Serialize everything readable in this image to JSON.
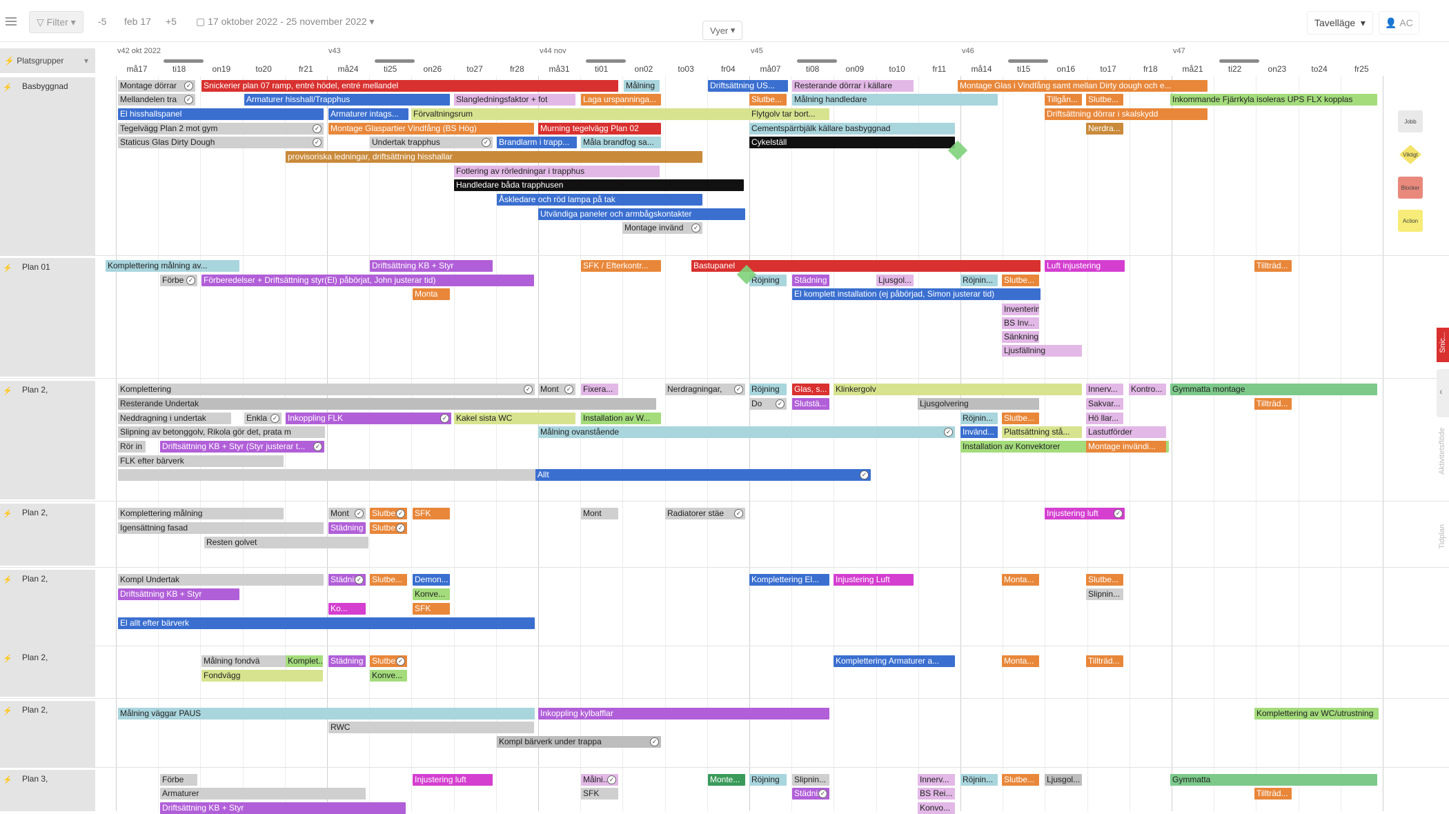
{
  "toolbar": {
    "filter_label": "Filter",
    "prev_label": "-5",
    "date_label": "feb 17",
    "next_label": "+5",
    "range_label": "17 oktober 2022 - 25 november 2022",
    "views_label": "Vyer",
    "mode_label": "Tavelläge",
    "user_label": "AC"
  },
  "header": {
    "group_label": "Platsgrupper",
    "weeks": [
      {
        "label": "v42  okt 2022"
      },
      {
        "label": "v43"
      },
      {
        "label": "v44  nov"
      },
      {
        "label": "v45"
      },
      {
        "label": "v46"
      },
      {
        "label": "v47"
      }
    ],
    "days": [
      "må17",
      "ti18",
      "on19",
      "to20",
      "fr21",
      "må24",
      "ti25",
      "on26",
      "to27",
      "fr28",
      "må31",
      "ti01",
      "on02",
      "to03",
      "fr04",
      "må07",
      "ti08",
      "on09",
      "to10",
      "fr11",
      "må14",
      "ti15",
      "on16",
      "to17",
      "fr18",
      "må21",
      "ti22",
      "on23",
      "to24",
      "fr25"
    ]
  },
  "groups": [
    {
      "label": "Basbyggnad"
    },
    {
      "label": "Plan 01"
    },
    {
      "label": "Plan 2,"
    },
    {
      "label": "Plan 2,"
    },
    {
      "label": "Plan 2,"
    },
    {
      "label": "Plan 2,"
    },
    {
      "label": "Plan 2,"
    },
    {
      "label": "Plan 3,"
    }
  ],
  "bars": [
    {
      "t": "Montage dörrar",
      "c": "#cfcfcf"
    },
    {
      "t": "Snickerier plan 07 ramp, entré hödel, entré mellandel",
      "c": "#d8312f"
    },
    {
      "t": "Målning",
      "c": "#a9d5dd"
    },
    {
      "t": "Driftsättning US...",
      "c": "#3a6fd0"
    },
    {
      "t": "Resterande dörrar i källare",
      "c": "#e2b8e6"
    },
    {
      "t": "Montage Glas i Vindfång samt mellan Dirty dough och e...",
      "c": "#e8873a"
    },
    {
      "t": "Mellandelen tra",
      "c": "#cfcfcf"
    },
    {
      "t": "Armaturer hisshall/Trapphus",
      "c": "#3a6fd0"
    },
    {
      "t": "Slangledningsfaktor + fot",
      "c": "#e2b8e6"
    },
    {
      "t": "Laga urspanninga...",
      "c": "#e8873a"
    },
    {
      "t": "Slutbe...",
      "c": "#e8873a"
    },
    {
      "t": "Målning handledare",
      "c": "#a9d5dd"
    },
    {
      "t": "Tillgån...",
      "c": "#e8873a"
    },
    {
      "t": "Slutbe...",
      "c": "#e8873a"
    },
    {
      "t": "Inkommande Fjärrkyla isoleras UPS FLX kopplas",
      "c": "#a4dc7c"
    },
    {
      "t": "El hisshallspanel",
      "c": "#3a6fd0"
    },
    {
      "t": "Armaturer intags...",
      "c": "#3a6fd0"
    },
    {
      "t": "Förvaltningsrum",
      "c": "#d7e38e"
    },
    {
      "t": "Flytgolv tar bort...",
      "c": "#d7e38e"
    },
    {
      "t": "Driftsättning dörrar i skalskydd",
      "c": "#e8873a"
    },
    {
      "t": "Tegelvägg Plan 2 mot gym",
      "c": "#cfcfcf"
    },
    {
      "t": "Montage Glaspartier Vindfång (BS Hög)",
      "c": "#e8873a"
    },
    {
      "t": "Murning tegelvägg Plan 02",
      "c": "#d8312f"
    },
    {
      "t": "Cementspärrbjälk källare basbyggnad",
      "c": "#a9d5dd"
    },
    {
      "t": "Nerdra...",
      "c": "#c98a3a"
    },
    {
      "t": "Staticus Glas Dirty Dough",
      "c": "#cfcfcf"
    },
    {
      "t": "Undertak trapphus",
      "c": "#cfcfcf"
    },
    {
      "t": "Brandlarm i trapp...",
      "c": "#3a6fd0"
    },
    {
      "t": "Måla brandfog sa...",
      "c": "#a9d5dd"
    },
    {
      "t": "Cykelställ",
      "c": "#111111"
    },
    {
      "t": "provisoriska ledningar, driftsättning hisshallar",
      "c": "#c98a3a"
    },
    {
      "t": "Fotlering av rörledningar i trapphus",
      "c": "#e2b8e6"
    },
    {
      "t": "Handledare båda trapphusen",
      "c": "#111111"
    },
    {
      "t": "Åskledare och röd lampa på tak",
      "c": "#3a6fd0"
    },
    {
      "t": "Utvändiga paneler och armbågskontakter",
      "c": "#3a6fd0"
    },
    {
      "t": "Montage invänd",
      "c": "#cfcfcf"
    },
    {
      "t": "Komplettering målning av...",
      "c": "#a9d5dd"
    },
    {
      "t": "Driftsättning KB + Styr",
      "c": "#b15fd8"
    },
    {
      "t": "SFK / Efterkontr...",
      "c": "#e8873a"
    },
    {
      "t": "Bastupanel",
      "c": "#d8312f"
    },
    {
      "t": "Luft injustering",
      "c": "#d43fd0"
    },
    {
      "t": "Tillträd...",
      "c": "#e8873a"
    },
    {
      "t": "Förbe",
      "c": "#cfcfcf"
    },
    {
      "t": "Förberedelser + Driftsättning styr(El) påbörjat, John justerar tid)",
      "c": "#b15fd8"
    },
    {
      "t": "Röjning",
      "c": "#a9d5dd"
    },
    {
      "t": "Städning",
      "c": "#b15fd8"
    },
    {
      "t": "Ljusgol...",
      "c": "#e2b8e6"
    },
    {
      "t": "Röjnin...",
      "c": "#a9d5dd"
    },
    {
      "t": "Slutbe...",
      "c": "#e8873a"
    },
    {
      "t": "Monta",
      "c": "#e8873a"
    },
    {
      "t": "El komplett installation (ej påbörjad, Simon justerar tid)",
      "c": "#3a6fd0"
    },
    {
      "t": "Inventering / Mont...",
      "c": "#e2b8e6"
    },
    {
      "t": "BS Inv...",
      "c": "#e2b8e6"
    },
    {
      "t": "Sänkning...",
      "c": "#e2b8e6"
    },
    {
      "t": "Ljusfällning",
      "c": "#e2b8e6"
    },
    {
      "t": "Komplettering",
      "c": "#cfcfcf"
    },
    {
      "t": "Mont",
      "c": "#cfcfcf"
    },
    {
      "t": "Fixera...",
      "c": "#e2b8e6"
    },
    {
      "t": "Nerdragningar,",
      "c": "#cfcfcf"
    },
    {
      "t": "Röjning",
      "c": "#a9d5dd"
    },
    {
      "t": "Glas, s...",
      "c": "#d8312f"
    },
    {
      "t": "Klinkergolv",
      "c": "#d7e38e"
    },
    {
      "t": "Innerv...",
      "c": "#e2b8e6"
    },
    {
      "t": "Kontro...",
      "c": "#e2b8e6"
    },
    {
      "t": "Gymmatta montage",
      "c": "#7cc98a"
    },
    {
      "t": "Resterande Undertak",
      "c": "#bdbdbd"
    },
    {
      "t": "Do",
      "c": "#cfcfcf"
    },
    {
      "t": "Slutstä...",
      "c": "#b15fd8"
    },
    {
      "t": "Ljusgolvering",
      "c": "#bdbdbd"
    },
    {
      "t": "Sakvar...",
      "c": "#e2b8e6"
    },
    {
      "t": "Tillträd...",
      "c": "#e8873a"
    },
    {
      "t": "Neddragning i undertak",
      "c": "#cfcfcf"
    },
    {
      "t": "Enkla",
      "c": "#cfcfcf"
    },
    {
      "t": "Inkoppling FLK",
      "c": "#b15fd8"
    },
    {
      "t": "Kakel sista WC",
      "c": "#d7e38e"
    },
    {
      "t": "Installation av W...",
      "c": "#a4dc7c"
    },
    {
      "t": "Röjnin...",
      "c": "#a9d5dd"
    },
    {
      "t": "Slutbe...",
      "c": "#e8873a"
    },
    {
      "t": "Hö llar...",
      "c": "#e2b8e6"
    },
    {
      "t": "Slipning av betonggolv, Rikola gör det, prata m",
      "c": "#cfcfcf"
    },
    {
      "t": "Målning ovanstående",
      "c": "#a9d5dd"
    },
    {
      "t": "Invänd...",
      "c": "#3a6fd0"
    },
    {
      "t": "Plattsättning stå...",
      "c": "#d7e38e"
    },
    {
      "t": "Lastutförder",
      "c": "#e2b8e6"
    },
    {
      "t": "Rör in",
      "c": "#cfcfcf"
    },
    {
      "t": "Driftsättning KB + Styr (Styr justerar t...",
      "c": "#b15fd8"
    },
    {
      "t": "Installation av Konvektorer",
      "c": "#a4dc7c"
    },
    {
      "t": "Montage invändi...",
      "c": "#e8873a"
    },
    {
      "t": "FLK efter bärverk",
      "c": "#cfcfcf"
    },
    {
      "t": "",
      "c": "#cfcfcf"
    },
    {
      "t": "Allt",
      "c": "#3a6fd0"
    },
    {
      "t": "Komplettering målning",
      "c": "#cfcfcf"
    },
    {
      "t": "Mont",
      "c": "#cfcfcf"
    },
    {
      "t": "Slutbe...",
      "c": "#e8873a"
    },
    {
      "t": "SFK",
      "c": "#e8873a"
    },
    {
      "t": "Mont",
      "c": "#cfcfcf"
    },
    {
      "t": "Radiatorer stäe",
      "c": "#cfcfcf"
    },
    {
      "t": "Injustering luft",
      "c": "#d43fd0"
    },
    {
      "t": "Igensättning fasad",
      "c": "#cfcfcf"
    },
    {
      "t": "Städning",
      "c": "#b15fd8"
    },
    {
      "t": "Slutbe...",
      "c": "#e8873a"
    },
    {
      "t": "Resten golvet",
      "c": "#cfcfcf"
    },
    {
      "t": "Kompl Undertak",
      "c": "#cfcfcf"
    },
    {
      "t": "Städning",
      "c": "#b15fd8"
    },
    {
      "t": "Slutbe...",
      "c": "#e8873a"
    },
    {
      "t": "Demon...",
      "c": "#3a6fd0"
    },
    {
      "t": "Komplettering El...",
      "c": "#3a6fd0"
    },
    {
      "t": "Injustering Luft",
      "c": "#d43fd0"
    },
    {
      "t": "Monta...",
      "c": "#e8873a"
    },
    {
      "t": "Slutbe...",
      "c": "#e8873a"
    },
    {
      "t": "Driftsättning KB + Styr",
      "c": "#b15fd8"
    },
    {
      "t": "Konve...",
      "c": "#a4dc7c"
    },
    {
      "t": "Slipnin...",
      "c": "#cfcfcf"
    },
    {
      "t": "Ko...",
      "c": "#d43fd0"
    },
    {
      "t": "SFK",
      "c": "#e8873a"
    },
    {
      "t": "El allt efter bärverk",
      "c": "#3a6fd0"
    },
    {
      "t": "Målning fondvä",
      "c": "#cfcfcf"
    },
    {
      "t": "Komplet...",
      "c": "#a4dc7c"
    },
    {
      "t": "Städning",
      "c": "#b15fd8"
    },
    {
      "t": "Slutbe...",
      "c": "#e8873a"
    },
    {
      "t": "Komplettering Armaturer a...",
      "c": "#3a6fd0"
    },
    {
      "t": "Monta...",
      "c": "#e8873a"
    },
    {
      "t": "Tillträd...",
      "c": "#e8873a"
    },
    {
      "t": "Fondvägg",
      "c": "#d7e38e"
    },
    {
      "t": "Konve...",
      "c": "#a4dc7c"
    },
    {
      "t": "Målning väggar PAUS",
      "c": "#a9d5dd"
    },
    {
      "t": "Inkoppling kylbafflar",
      "c": "#b15fd8"
    },
    {
      "t": "Komplettering av WC/utrustning",
      "c": "#a4dc7c"
    },
    {
      "t": "RWC",
      "c": "#cfcfcf"
    },
    {
      "t": "Kompl bärverk under trappa",
      "c": "#bdbdbd"
    },
    {
      "t": "Förbe",
      "c": "#cfcfcf"
    },
    {
      "t": "Injustering luft",
      "c": "#d43fd0"
    },
    {
      "t": "Målni...",
      "c": "#e2b8e6"
    },
    {
      "t": "Monte...",
      "c": "#3a9a5a"
    },
    {
      "t": "Röjning",
      "c": "#a9d5dd"
    },
    {
      "t": "Slipnin...",
      "c": "#cfcfcf"
    },
    {
      "t": "Innerv...",
      "c": "#e2b8e6"
    },
    {
      "t": "Röjnin...",
      "c": "#a9d5dd"
    },
    {
      "t": "Slutbe...",
      "c": "#e8873a"
    },
    {
      "t": "Ljusgol...",
      "c": "#bdbdbd"
    },
    {
      "t": "Gymmatta",
      "c": "#7cc98a"
    },
    {
      "t": "Armaturer",
      "c": "#cfcfcf"
    },
    {
      "t": "SFK",
      "c": "#cfcfcf"
    },
    {
      "t": "Städning",
      "c": "#b15fd8"
    },
    {
      "t": "BS Rei...",
      "c": "#e2b8e6"
    },
    {
      "t": "Tillträd...",
      "c": "#e8873a"
    },
    {
      "t": "Driftsättning KB + Styr",
      "c": "#b15fd8"
    },
    {
      "t": "Konvo...",
      "c": "#e2b8e6"
    }
  ],
  "side_icons": [
    {
      "label": "Jobb",
      "c": "#e9e9e9"
    },
    {
      "label": "Viktigt",
      "c": "#f4e36a"
    },
    {
      "label": "Blocker",
      "c": "#e8897c"
    },
    {
      "label": "Action",
      "c": "#f7ec78"
    }
  ],
  "side_tabs": [
    {
      "label": "Snic..."
    },
    {
      "label": "Aktivitetsflöde"
    },
    {
      "label": "Tidplan"
    }
  ]
}
